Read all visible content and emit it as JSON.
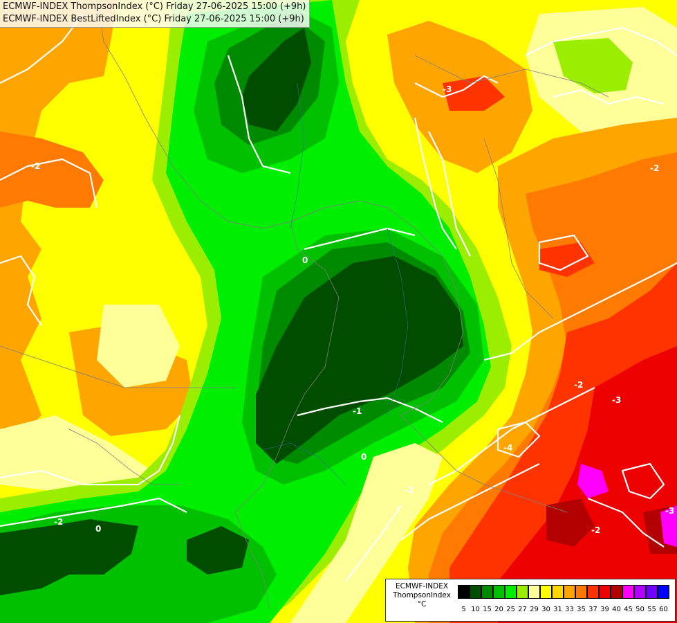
{
  "header": {
    "line1": "ECMWF-INDEX ThompsonIndex (°C) Friday 27-06-2025 15:00 (+9h)",
    "line2": "ECMWF-INDEX BestLiftedIndex (°C) Friday 27-06-2025 15:00 (+9h)"
  },
  "legend": {
    "title_line1": "ECMWF-INDEX",
    "title_line2": "ThompsonIndex",
    "unit": "°C",
    "colors": [
      "#000000",
      "#000000",
      "#000000",
      "#000000",
      "#004d00",
      "#008a00",
      "#00c000",
      "#00ee00",
      "#9bee00",
      "#ffff99",
      "#ffff00",
      "#ffd800",
      "#ffa500",
      "#ff7a00",
      "#ff3300",
      "#ee0000",
      "#b30000",
      "#ff00ff",
      "#b000ff",
      "#7000ff",
      "#0000ff"
    ],
    "ticks": [
      "5",
      "10",
      "15",
      "20",
      "25",
      "27",
      "29",
      "30",
      "31",
      "33",
      "35",
      "37",
      "39",
      "40",
      "45",
      "50",
      "55",
      "60"
    ]
  },
  "contour_labels": {
    "minus1": "-1",
    "minus2": "-2",
    "minus3": "-3",
    "minus4": "-4",
    "zero": "0"
  }
}
